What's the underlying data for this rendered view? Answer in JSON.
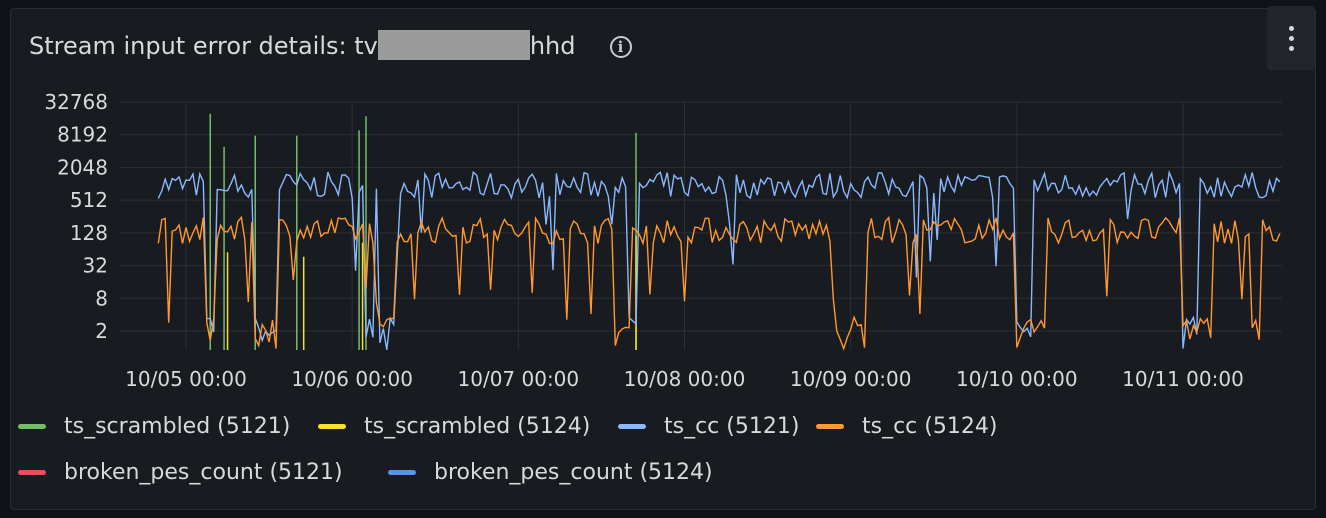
{
  "panel": {
    "title_prefix": "Stream input error details: tv",
    "title_suffix": "hhd",
    "info_icon": "info-icon",
    "menu_icon": "kebab-menu-icon"
  },
  "chart_data": {
    "type": "line",
    "title": "Stream input error details: tv…hhd",
    "y_scale": "log2",
    "ylim": [
      1,
      32768
    ],
    "y_ticks": [
      "32768",
      "8192",
      "2048",
      "512",
      "128",
      "32",
      "8",
      "2"
    ],
    "x_ticks": [
      "10/05 00:00",
      "10/06 00:00",
      "10/07 00:00",
      "10/08 00:00",
      "10/09 00:00",
      "10/10 00:00",
      "10/11 00:00"
    ],
    "x_range": [
      "10/04 20:00",
      "10/11 14:00"
    ],
    "grid": true,
    "legend_placement": "bottom",
    "series": [
      {
        "name": "ts_scrambled (5121)",
        "color": "#73bf69",
        "spikes": [
          {
            "x": "10/05 03:30",
            "y": 20000
          },
          {
            "x": "10/05 05:30",
            "y": 5000
          },
          {
            "x": "10/05 10:00",
            "y": 8000
          },
          {
            "x": "10/05 16:00",
            "y": 8000
          },
          {
            "x": "10/06 01:00",
            "y": 10000
          },
          {
            "x": "10/06 02:00",
            "y": 18000
          },
          {
            "x": "10/07 17:00",
            "y": 9000
          }
        ]
      },
      {
        "name": "ts_scrambled (5124)",
        "color": "#fade2a",
        "spikes": [
          {
            "x": "10/05 06:00",
            "y": 60
          },
          {
            "x": "10/05 17:00",
            "y": 50
          },
          {
            "x": "10/06 01:30",
            "y": 90
          },
          {
            "x": "10/07 17:00",
            "y": 120
          }
        ]
      },
      {
        "name": "ts_cc (5121)",
        "color": "#8ab8ff",
        "baseline": 1000,
        "gaps": [
          [
            "10/05 03:00",
            "10/05 04:00"
          ],
          [
            "10/05 10:00",
            "10/05 13:00"
          ],
          [
            "10/06 02:00",
            "10/06 03:00"
          ],
          [
            "10/06 04:00",
            "10/06 06:00"
          ],
          [
            "10/07 16:00",
            "10/07 17:00"
          ],
          [
            "10/10 00:00",
            "10/10 02:00"
          ],
          [
            "10/11 00:00",
            "10/11 02:00"
          ]
        ]
      },
      {
        "name": "ts_cc (5124)",
        "color": "#ff9830",
        "baseline": 150,
        "gaps": [
          [
            "10/05 03:00",
            "10/05 04:00"
          ],
          [
            "10/05 10:00",
            "10/05 13:00"
          ],
          [
            "10/06 04:00",
            "10/06 06:00"
          ],
          [
            "10/07 14:00",
            "10/07 16:00"
          ],
          [
            "10/08 22:00",
            "10/09 02:00"
          ],
          [
            "10/10 00:00",
            "10/10 04:00"
          ],
          [
            "10/11 00:00",
            "10/11 04:00"
          ],
          [
            "10/11 10:00",
            "10/11 11:00"
          ]
        ]
      },
      {
        "name": "broken_pes_count (5121)",
        "color": "#f2495c"
      },
      {
        "name": "broken_pes_count (5124)",
        "color": "#5794f2"
      }
    ]
  }
}
